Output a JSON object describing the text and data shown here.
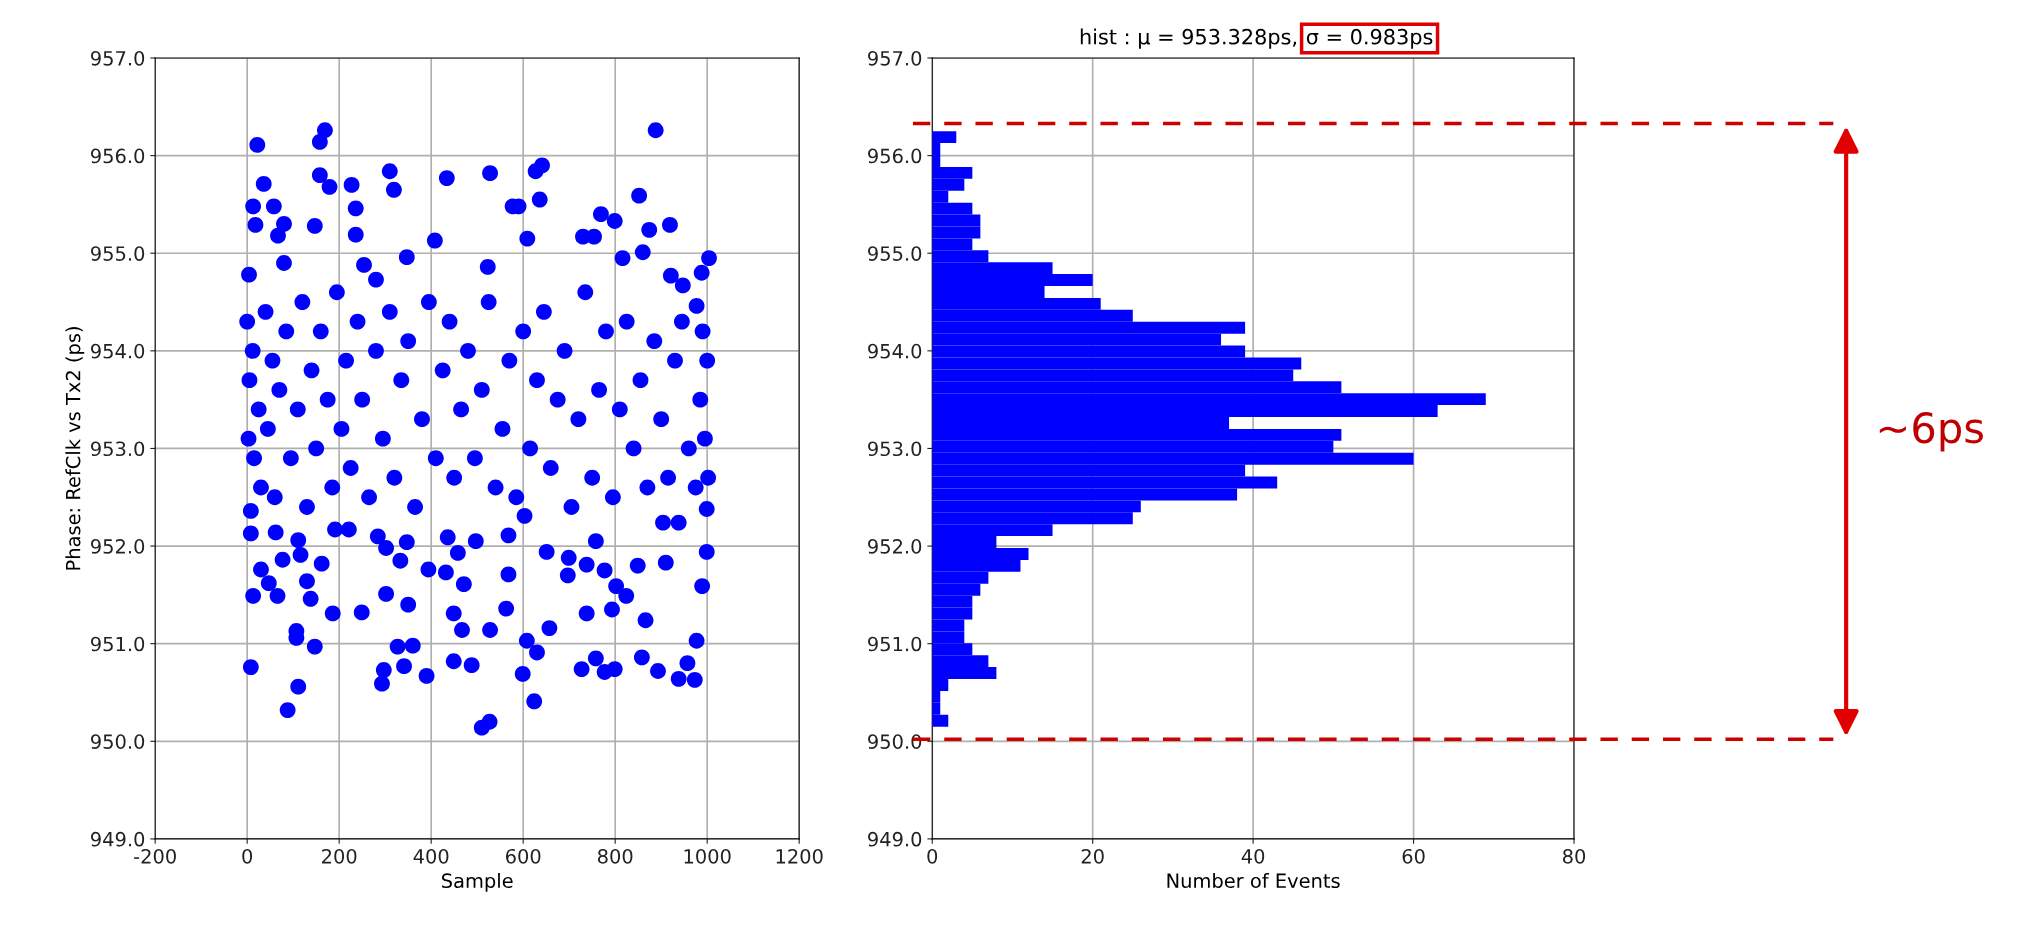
{
  "chart_data": [
    {
      "type": "scatter",
      "xlabel": "Sample",
      "ylabel": "Phase: RefClk vs Tx2 (ps)",
      "xlim": [
        -200,
        1200
      ],
      "xticks": [
        -200,
        0,
        200,
        400,
        600,
        800,
        1000,
        1200
      ],
      "ylim": [
        949,
        957
      ],
      "yticks": [
        {
          "value": 949,
          "label": "949.0"
        },
        {
          "value": 950,
          "label": "950.0"
        },
        {
          "value": 951,
          "label": "951.0"
        },
        {
          "value": 952,
          "label": "952.0"
        },
        {
          "value": 953,
          "label": "953.0"
        },
        {
          "value": 954,
          "label": "954.0"
        },
        {
          "value": 955,
          "label": "955.0"
        },
        {
          "value": 956,
          "label": "956.0"
        },
        {
          "value": 957,
          "label": "957.0"
        }
      ],
      "grid": true,
      "marker": "circle",
      "series": [
        {
          "color": "#0000ff",
          "x": [
            22,
            158,
            169,
            888,
            36,
            13,
            58,
            18,
            80,
            67,
            147,
            158,
            179,
            227,
            236,
            236,
            310,
            319,
            434,
            528,
            627,
            641,
            636,
            577,
            590,
            609,
            408,
            852,
            919,
            769,
            799,
            730,
            754,
            874,
            860,
            1004,
            988,
            4,
            80,
            254,
            280,
            347,
            523,
            816,
            921,
            977,
            947,
            8,
            8,
            62,
            111,
            116,
            77,
            30,
            47,
            13,
            66,
            130,
            162,
            138,
            186,
            249,
            191,
            221,
            284,
            302,
            347,
            333,
            302,
            350,
            394,
            436,
            458,
            432,
            471,
            449,
            467,
            497,
            568,
            568,
            563,
            528,
            603,
            651,
            657,
            608,
            630,
            699,
            697,
            738,
            758,
            777,
            802,
            824,
            738,
            793,
            866,
            849,
            910,
            999,
            989,
            977,
            999,
            938,
            904,
            8,
            107,
            107,
            147,
            111,
            88,
            293,
            297,
            327,
            360,
            341,
            390,
            449,
            488,
            510,
            527,
            599,
            624,
            727,
            758,
            777,
            799,
            858,
            893,
            938,
            957,
            973,
            0,
            3,
            5,
            12,
            15,
            25,
            30,
            40,
            45,
            55,
            60,
            70,
            85,
            95,
            110,
            120,
            130,
            140,
            150,
            160,
            175,
            185,
            195,
            205,
            215,
            225,
            240,
            250,
            265,
            280,
            295,
            310,
            320,
            335,
            350,
            365,
            380,
            395,
            410,
            425,
            440,
            450,
            465,
            480,
            495,
            510,
            525,
            540,
            555,
            570,
            585,
            600,
            615,
            630,
            645,
            660,
            675,
            690,
            705,
            720,
            735,
            750,
            765,
            780,
            795,
            810,
            825,
            840,
            855,
            870,
            885,
            900,
            915,
            930,
            945,
            960,
            975,
            985,
            995,
            1000,
            1002,
            990
          ],
          "values": [
            956.11,
            956.14,
            956.26,
            956.26,
            955.71,
            955.48,
            955.48,
            955.29,
            955.3,
            955.18,
            955.28,
            955.8,
            955.68,
            955.7,
            955.46,
            955.19,
            955.84,
            955.65,
            955.77,
            955.82,
            955.84,
            955.9,
            955.55,
            955.48,
            955.48,
            955.15,
            955.13,
            955.59,
            955.29,
            955.4,
            955.33,
            955.17,
            955.17,
            955.24,
            955.01,
            954.95,
            954.8,
            954.78,
            954.9,
            954.88,
            954.73,
            954.96,
            954.86,
            954.95,
            954.77,
            954.46,
            954.67,
            952.36,
            952.13,
            952.14,
            952.06,
            951.91,
            951.86,
            951.76,
            951.62,
            951.49,
            951.49,
            951.64,
            951.82,
            951.46,
            951.31,
            951.32,
            952.17,
            952.17,
            952.1,
            951.98,
            952.04,
            951.85,
            951.51,
            951.4,
            951.76,
            952.09,
            951.93,
            951.73,
            951.61,
            951.31,
            951.14,
            952.05,
            952.11,
            951.71,
            951.36,
            951.14,
            952.31,
            951.94,
            951.16,
            951.03,
            950.91,
            951.88,
            951.7,
            951.81,
            952.05,
            951.75,
            951.59,
            951.49,
            951.31,
            951.35,
            951.24,
            951.8,
            951.83,
            951.94,
            951.59,
            951.03,
            952.38,
            952.24,
            952.24,
            950.76,
            951.13,
            951.06,
            950.97,
            950.56,
            950.32,
            950.59,
            950.73,
            950.97,
            950.98,
            950.77,
            950.67,
            950.82,
            950.78,
            950.14,
            950.2,
            950.69,
            950.41,
            950.74,
            950.85,
            950.71,
            950.74,
            950.86,
            950.72,
            950.64,
            950.8,
            950.63,
            954.3,
            953.1,
            953.7,
            954.0,
            952.9,
            953.4,
            952.6,
            954.4,
            953.2,
            953.9,
            952.5,
            953.6,
            954.2,
            952.9,
            953.4,
            954.5,
            952.4,
            953.8,
            953.0,
            954.2,
            953.5,
            952.6,
            954.6,
            953.2,
            953.9,
            952.8,
            954.3,
            953.5,
            952.5,
            954.0,
            953.1,
            954.4,
            952.7,
            953.7,
            954.1,
            952.4,
            953.3,
            954.5,
            952.9,
            953.8,
            954.3,
            952.7,
            953.4,
            954.0,
            952.9,
            953.6,
            954.5,
            952.6,
            953.2,
            953.9,
            952.5,
            954.2,
            953.0,
            953.7,
            954.4,
            952.8,
            953.5,
            954.0,
            952.4,
            953.3,
            954.6,
            952.7,
            953.6,
            954.2,
            952.5,
            953.4,
            954.3,
            953.0,
            953.7,
            952.6,
            954.1,
            953.3,
            952.7,
            953.9,
            954.3,
            953.0,
            952.6,
            953.5,
            953.1,
            953.9,
            952.7,
            954.2
          ]
        }
      ]
    },
    {
      "type": "histogram",
      "orientation": "horizontal",
      "title": "hist : μ = 953.328ps,",
      "xlabel": "Number of Events",
      "xlim": [
        0,
        80
      ],
      "xticks": [
        0,
        20,
        40,
        60,
        80
      ],
      "ylim": [
        949,
        957
      ],
      "yticks": [
        {
          "value": 949,
          "label": "949.0"
        },
        {
          "value": 950,
          "label": "950.0"
        },
        {
          "value": 951,
          "label": "951.0"
        },
        {
          "value": 952,
          "label": "952.0"
        },
        {
          "value": 953,
          "label": "953.0"
        },
        {
          "value": 954,
          "label": "954.0"
        },
        {
          "value": 955,
          "label": "955.0"
        },
        {
          "value": 956,
          "label": "956.0"
        },
        {
          "value": 957,
          "label": "957.0"
        }
      ],
      "grid": true,
      "color": "#0000ff",
      "bins": [
        950.15,
        950.272,
        950.394,
        950.516,
        950.638,
        950.76,
        950.882,
        951.004,
        951.126,
        951.248,
        951.37,
        951.492,
        951.614,
        951.736,
        951.858,
        951.98,
        952.102,
        952.224,
        952.346,
        952.468,
        952.59,
        952.712,
        952.834,
        952.956,
        953.078,
        953.2,
        953.322,
        953.444,
        953.566,
        953.688,
        953.81,
        953.932,
        954.054,
        954.176,
        954.298,
        954.42,
        954.542,
        954.664,
        954.786,
        954.908,
        955.03,
        955.152,
        955.274,
        955.396,
        955.518,
        955.64,
        955.762,
        955.884,
        956.006,
        956.128,
        956.25
      ],
      "values": [
        2,
        1,
        1,
        2,
        8,
        7,
        5,
        4,
        4,
        5,
        5,
        6,
        7,
        11,
        12,
        8,
        15,
        25,
        26,
        38,
        43,
        39,
        60,
        50,
        51,
        37,
        63,
        69,
        51,
        45,
        46,
        39,
        36,
        39,
        25,
        21,
        14,
        20,
        15,
        7,
        5,
        6,
        6,
        5,
        2,
        4,
        5,
        1,
        1,
        3
      ],
      "ref_lines": [
        {
          "axis": "y",
          "value": 956.33,
          "color": "#cc0000",
          "line_style": "dashed"
        },
        {
          "axis": "y",
          "value": 950.02,
          "color": "#cc0000",
          "line_style": "dashed"
        }
      ],
      "annotations": [
        "σ = 0.983ps",
        "~6ps"
      ]
    }
  ]
}
